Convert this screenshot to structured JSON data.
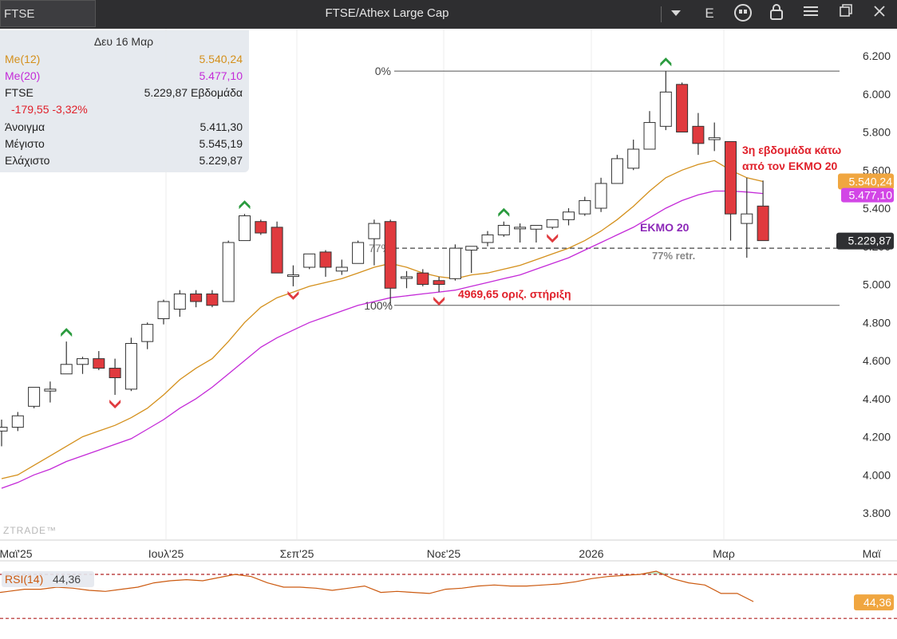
{
  "window": {
    "symbol": "FTSE",
    "title": "FTSE/Athex Large Cap",
    "e_label": "E",
    "icons": [
      "dropdown-icon",
      "quote-icon",
      "lock-icon",
      "menu-icon",
      "restore-icon",
      "close-icon"
    ]
  },
  "info_panel": {
    "date": "Δευ 16 Μαρ",
    "ma12_label": "Me(12)",
    "ma12_value": "5.540,24",
    "ma20_label": "Me(20)",
    "ma20_value": "5.477,10",
    "symbol": "FTSE",
    "close_period": "5.229,87 Εβδομάδα",
    "change": "-179,55 -3,32%",
    "open_label": "Άνοιγμα",
    "open_value": "5.411,30",
    "high_label": "Μέγιστο",
    "high_value": "5.545,19",
    "low_label": "Ελάχιστο",
    "low_value": "5.229,87"
  },
  "colors": {
    "up_fill": "#ffffff",
    "down_fill": "#e03a3e",
    "ma12": "#d4901c",
    "ma20": "#c42ad8",
    "rsi_line": "#cc5a10",
    "annotation_red": "#e0202a",
    "ema_label": "#8c28b8",
    "arrow_up": "#2a9b3e",
    "arrow_down": "#e03a3e"
  },
  "chart_data": {
    "type": "candlestick",
    "period": "weekly",
    "ylim": [
      3700,
      6300
    ],
    "yticks": [
      "6.200",
      "6.000",
      "5.800",
      "5.600",
      "5.400",
      "5.200",
      "5.000",
      "4.800",
      "4.600",
      "4.400",
      "4.200",
      "4.000",
      "3.800"
    ],
    "ytick_values": [
      6200,
      6000,
      5800,
      5600,
      5400,
      5200,
      5000,
      4800,
      4600,
      4400,
      4200,
      4000,
      3800
    ],
    "xticks": [
      "Μαϊ'25",
      "Ιουλ'25",
      "Σεπ'25",
      "Νοε'25",
      "2026",
      "Μαρ",
      "Μαϊ"
    ],
    "candles": [
      {
        "o": 4230,
        "h": 4290,
        "l": 4150,
        "c": 4250
      },
      {
        "o": 4250,
        "h": 4330,
        "l": 4230,
        "c": 4310
      },
      {
        "o": 4360,
        "h": 4460,
        "l": 4350,
        "c": 4460
      },
      {
        "o": 4440,
        "h": 4490,
        "l": 4380,
        "c": 4450
      },
      {
        "o": 4530,
        "h": 4700,
        "l": 4530,
        "c": 4580
      },
      {
        "o": 4580,
        "h": 4620,
        "l": 4530,
        "c": 4610
      },
      {
        "o": 4610,
        "h": 4650,
        "l": 4550,
        "c": 4560
      },
      {
        "o": 4560,
        "h": 4610,
        "l": 4420,
        "c": 4510
      },
      {
        "o": 4450,
        "h": 4720,
        "l": 4440,
        "c": 4690
      },
      {
        "o": 4700,
        "h": 4800,
        "l": 4660,
        "c": 4790
      },
      {
        "o": 4820,
        "h": 4920,
        "l": 4790,
        "c": 4910
      },
      {
        "o": 4870,
        "h": 4970,
        "l": 4830,
        "c": 4950
      },
      {
        "o": 4950,
        "h": 4970,
        "l": 4880,
        "c": 4910
      },
      {
        "o": 4950,
        "h": 4970,
        "l": 4880,
        "c": 4890
      },
      {
        "o": 4910,
        "h": 5230,
        "l": 4910,
        "c": 5220
      },
      {
        "o": 5230,
        "h": 5370,
        "l": 5230,
        "c": 5360
      },
      {
        "o": 5330,
        "h": 5340,
        "l": 5260,
        "c": 5270
      },
      {
        "o": 5300,
        "h": 5330,
        "l": 5060,
        "c": 5060
      },
      {
        "o": 5050,
        "h": 5100,
        "l": 4990,
        "c": 5050
      },
      {
        "o": 5090,
        "h": 5160,
        "l": 5080,
        "c": 5160
      },
      {
        "o": 5170,
        "h": 5180,
        "l": 5040,
        "c": 5090
      },
      {
        "o": 5070,
        "h": 5130,
        "l": 5050,
        "c": 5090
      },
      {
        "o": 5110,
        "h": 5230,
        "l": 5110,
        "c": 5220
      },
      {
        "o": 5240,
        "h": 5340,
        "l": 5100,
        "c": 5320
      },
      {
        "o": 5330,
        "h": 5340,
        "l": 4890,
        "c": 4980
      },
      {
        "o": 5040,
        "h": 5070,
        "l": 4980,
        "c": 5040
      },
      {
        "o": 5060,
        "h": 5080,
        "l": 4990,
        "c": 5000
      },
      {
        "o": 5020,
        "h": 5040,
        "l": 4960,
        "c": 5000
      },
      {
        "o": 5030,
        "h": 5210,
        "l": 5020,
        "c": 5190
      },
      {
        "o": 5180,
        "h": 5200,
        "l": 5060,
        "c": 5200
      },
      {
        "o": 5220,
        "h": 5280,
        "l": 5200,
        "c": 5260
      },
      {
        "o": 5260,
        "h": 5330,
        "l": 5250,
        "c": 5310
      },
      {
        "o": 5300,
        "h": 5320,
        "l": 5220,
        "c": 5300
      },
      {
        "o": 5290,
        "h": 5310,
        "l": 5220,
        "c": 5310
      },
      {
        "o": 5300,
        "h": 5340,
        "l": 5290,
        "c": 5340
      },
      {
        "o": 5340,
        "h": 5400,
        "l": 5310,
        "c": 5380
      },
      {
        "o": 5370,
        "h": 5460,
        "l": 5360,
        "c": 5440
      },
      {
        "o": 5400,
        "h": 5560,
        "l": 5380,
        "c": 5530
      },
      {
        "o": 5530,
        "h": 5680,
        "l": 5530,
        "c": 5660
      },
      {
        "o": 5610,
        "h": 5760,
        "l": 5600,
        "c": 5710
      },
      {
        "o": 5710,
        "h": 5910,
        "l": 5710,
        "c": 5850
      },
      {
        "o": 5830,
        "h": 6120,
        "l": 5810,
        "c": 6010
      },
      {
        "o": 6050,
        "h": 6060,
        "l": 5800,
        "c": 5800
      },
      {
        "o": 5830,
        "h": 5900,
        "l": 5680,
        "c": 5740
      },
      {
        "o": 5760,
        "h": 5850,
        "l": 5700,
        "c": 5770
      },
      {
        "o": 5750,
        "h": 5750,
        "l": 5230,
        "c": 5370
      },
      {
        "o": 5320,
        "h": 5560,
        "l": 5140,
        "c": 5370
      },
      {
        "o": 5411.3,
        "h": 5545.19,
        "l": 5229.87,
        "c": 5229.87
      }
    ],
    "series": [
      {
        "name": "Me(12)",
        "values": [
          3980,
          4000,
          4050,
          4100,
          4150,
          4200,
          4230,
          4260,
          4300,
          4350,
          4420,
          4500,
          4560,
          4610,
          4700,
          4800,
          4880,
          4930,
          4960,
          4990,
          5010,
          5030,
          5060,
          5090,
          5110,
          5090,
          5060,
          5040,
          5030,
          5050,
          5060,
          5080,
          5100,
          5130,
          5160,
          5190,
          5230,
          5280,
          5340,
          5410,
          5490,
          5560,
          5600,
          5630,
          5650,
          5600,
          5560,
          5540.24
        ]
      },
      {
        "name": "Me(20)",
        "values": [
          3930,
          3960,
          4000,
          4030,
          4070,
          4100,
          4130,
          4160,
          4190,
          4240,
          4290,
          4350,
          4400,
          4460,
          4530,
          4600,
          4670,
          4720,
          4760,
          4800,
          4830,
          4860,
          4890,
          4910,
          4930,
          4940,
          4950,
          4960,
          4970,
          4990,
          5010,
          5030,
          5050,
          5080,
          5110,
          5140,
          5180,
          5220,
          5260,
          5300,
          5350,
          5400,
          5440,
          5470,
          5490,
          5490,
          5485,
          5477.1
        ]
      }
    ],
    "last_labels": {
      "ma12": "5.540,24",
      "ma20": "5.477,10",
      "price": "5.229,87"
    },
    "fib": {
      "p0_label": "0%",
      "p0_value": 6120,
      "p77_label": "77%",
      "p77_value": 5190,
      "p100_label": "100%",
      "p100_value": 4890,
      "retr_label": "77% retr."
    },
    "annotations": {
      "support": "4969,65 οριζ. στήριξη",
      "ema20": "ΕΚΜΟ 20",
      "note_line1": "3η εβδομάδα κάτω",
      "note_line2": "από τον ΕΚΜΟ 20"
    },
    "arrows_up": [
      4,
      15,
      31,
      41
    ],
    "arrows_down": [
      7,
      18,
      27,
      34
    ],
    "watermark": "ZTRADE™",
    "rsi": {
      "label": "RSI(14)",
      "value": "44,36",
      "overbought": 70,
      "oversold": 30,
      "values": [
        52,
        54,
        56,
        56,
        58,
        57,
        55,
        54,
        56,
        58,
        62,
        64,
        65,
        64,
        67,
        70,
        68,
        62,
        58,
        58,
        57,
        55,
        57,
        59,
        53,
        54,
        53,
        52,
        56,
        57,
        59,
        60,
        59,
        59,
        60,
        61,
        63,
        66,
        68,
        69,
        70,
        73,
        66,
        62,
        60,
        52,
        52,
        44.36
      ]
    }
  }
}
